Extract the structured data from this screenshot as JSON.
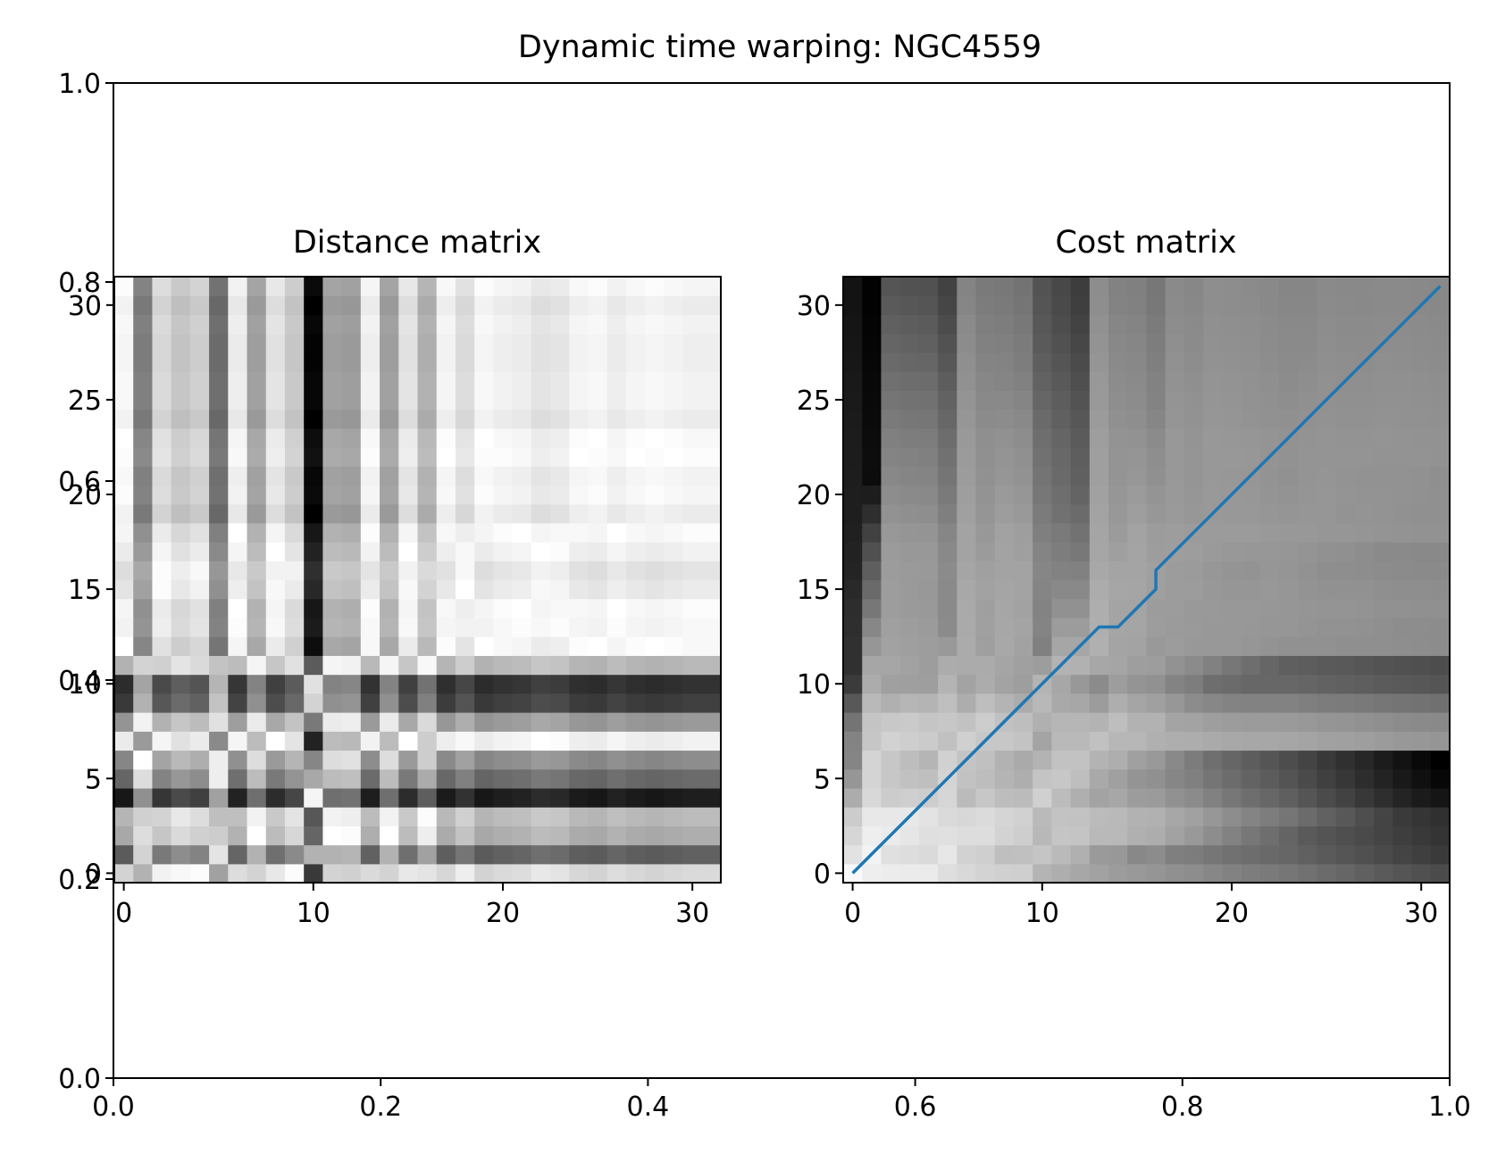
{
  "figure": {
    "title": "Dynamic time warping: NGC4559"
  },
  "chart_data": [
    {
      "type": "line",
      "role": "outer-axes",
      "title": "",
      "xlabel": "",
      "ylabel": "",
      "xlim": [
        0,
        1
      ],
      "ylim": [
        0,
        1
      ],
      "x_ticks": [
        "0.0",
        "0.2",
        "0.4",
        "0.6",
        "0.8",
        "1.0"
      ],
      "y_ticks": [
        "0.0",
        "0.2",
        "0.4",
        "0.6",
        "0.8",
        "1.0"
      ],
      "series": []
    },
    {
      "type": "heatmap",
      "title": "Distance matrix",
      "colormap": "gray_r",
      "n": 32,
      "xlim": [
        -0.5,
        31.5
      ],
      "ylim": [
        -0.5,
        31.5
      ],
      "x_ticks": [
        "0",
        "10",
        "20",
        "30"
      ],
      "y_ticks": [
        "0",
        "5",
        "10",
        "15",
        "20",
        "25",
        "30"
      ],
      "series_a": [
        0.83,
        0.47,
        0.7,
        0.74,
        0.27,
        0.5,
        0.6,
        0.9,
        0.64,
        0.37,
        0.33,
        0.73,
        0.96,
        0.92,
        0.93,
        0.88,
        0.86,
        0.9,
        0.93,
        1.0,
        0.97,
        0.98,
        0.95,
        0.96,
        1.0,
        0.98,
        0.98,
        0.99,
        0.99,
        0.98,
        1.0,
        0.97
      ],
      "series_b": [
        0.96,
        0.6,
        0.87,
        0.81,
        0.84,
        0.55,
        0.93,
        0.7,
        0.9,
        0.82,
        0.24,
        0.7,
        0.69,
        0.94,
        0.7,
        0.9,
        0.75,
        0.95,
        0.88,
        0.96,
        0.94,
        0.93,
        0.9,
        0.91,
        0.95,
        0.96,
        0.93,
        0.95,
        0.96,
        0.95,
        0.94,
        0.94
      ]
    },
    {
      "type": "heatmap",
      "title": "Cost matrix",
      "colormap": "gray_r",
      "n": 32,
      "xlim": [
        -0.5,
        31.5
      ],
      "ylim": [
        -0.5,
        31.5
      ],
      "x_ticks": [
        "0",
        "10",
        "20",
        "30"
      ],
      "y_ticks": [
        "0",
        "5",
        "10",
        "15",
        "20",
        "25",
        "30"
      ],
      "warping_path": {
        "color": "#1f77b4",
        "points": [
          [
            0,
            0
          ],
          [
            1,
            1
          ],
          [
            2,
            2
          ],
          [
            3,
            3
          ],
          [
            4,
            4
          ],
          [
            5,
            5
          ],
          [
            6,
            6
          ],
          [
            7,
            7
          ],
          [
            8,
            8
          ],
          [
            9,
            9
          ],
          [
            10,
            10
          ],
          [
            11,
            11
          ],
          [
            12,
            12
          ],
          [
            13,
            13
          ],
          [
            14,
            13
          ],
          [
            15,
            14
          ],
          [
            16,
            15
          ],
          [
            16,
            16
          ],
          [
            17,
            17
          ],
          [
            18,
            18
          ],
          [
            19,
            19
          ],
          [
            20,
            20
          ],
          [
            21,
            21
          ],
          [
            22,
            22
          ],
          [
            23,
            23
          ],
          [
            24,
            24
          ],
          [
            25,
            25
          ],
          [
            26,
            26
          ],
          [
            27,
            27
          ],
          [
            28,
            28
          ],
          [
            29,
            29
          ],
          [
            30,
            30
          ],
          [
            31,
            31
          ]
        ]
      }
    }
  ]
}
